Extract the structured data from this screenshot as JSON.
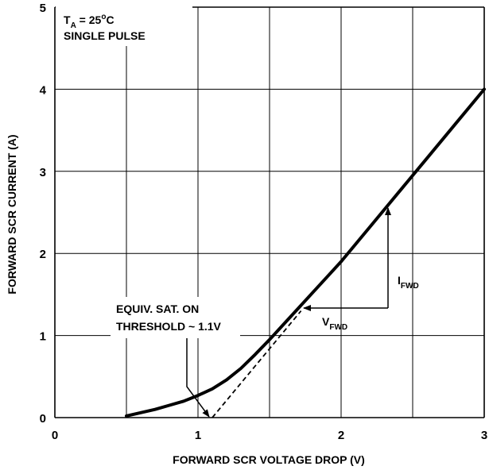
{
  "chart_data": {
    "type": "line",
    "xlabel": "FORWARD SCR VOLTAGE DROP (V)",
    "ylabel": "FORWARD SCR CURRENT (A)",
    "xlim": [
      0,
      3
    ],
    "ylim": [
      0,
      5
    ],
    "x_ticks": [
      "0",
      "1",
      "2",
      "3"
    ],
    "y_ticks": [
      "0",
      "1",
      "2",
      "3",
      "4",
      "5"
    ],
    "grid": true,
    "series": [
      {
        "values": [
          {
            "x": 0.5,
            "y": 0.02
          },
          {
            "x": 0.6,
            "y": 0.06
          },
          {
            "x": 0.7,
            "y": 0.1
          },
          {
            "x": 0.8,
            "y": 0.15
          },
          {
            "x": 0.9,
            "y": 0.2
          },
          {
            "x": 1.0,
            "y": 0.27
          },
          {
            "x": 1.1,
            "y": 0.35
          },
          {
            "x": 1.2,
            "y": 0.46
          },
          {
            "x": 1.3,
            "y": 0.6
          },
          {
            "x": 1.4,
            "y": 0.77
          },
          {
            "x": 1.5,
            "y": 0.95
          },
          {
            "x": 1.6,
            "y": 1.14
          },
          {
            "x": 1.7,
            "y": 1.33
          },
          {
            "x": 1.8,
            "y": 1.52
          },
          {
            "x": 1.9,
            "y": 1.71
          },
          {
            "x": 2.0,
            "y": 1.9
          },
          {
            "x": 2.2,
            "y": 2.32
          },
          {
            "x": 2.4,
            "y": 2.74
          },
          {
            "x": 2.6,
            "y": 3.16
          },
          {
            "x": 2.8,
            "y": 3.58
          },
          {
            "x": 3.0,
            "y": 4.0
          }
        ]
      }
    ],
    "tangent_line": [
      {
        "x": 1.1,
        "y": 0
      },
      {
        "x": 1.72,
        "y": 1.3
      }
    ],
    "annotations": {
      "conditions_line1_main": "T",
      "conditions_line1_sub": "A",
      "conditions_line1_rest": " = 25",
      "conditions_line1_sup": "o",
      "conditions_line1_end": "C",
      "conditions_line2": "SINGLE PULSE",
      "threshold_line1": "EQUIV. SAT. ON",
      "threshold_line2": "THRESHOLD ~ 1.1V",
      "vfwd_main": "V",
      "vfwd_sub": "FWD",
      "ifwd_main": "I",
      "ifwd_sub": "FWD"
    }
  }
}
